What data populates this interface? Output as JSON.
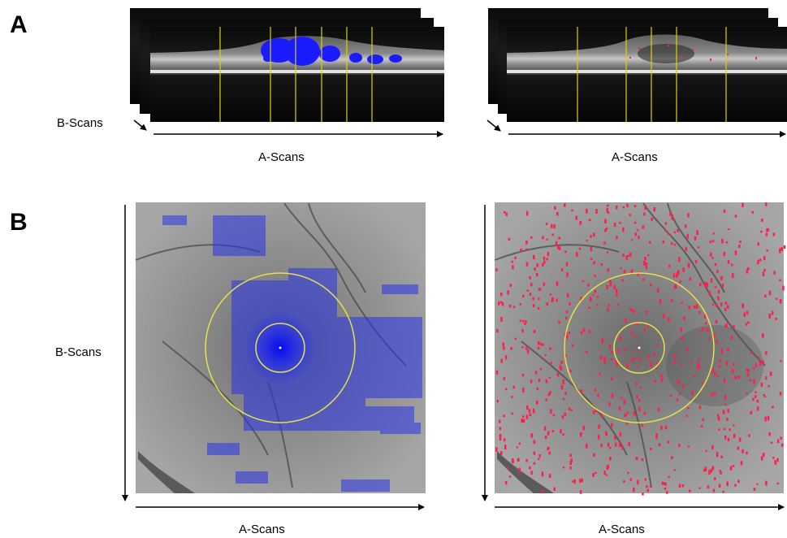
{
  "figure": {
    "panels": [
      {
        "letter": "A",
        "views": [
          {
            "side": "left",
            "b_axis_label": "B-Scans",
            "a_axis_label": "A-Scans",
            "overlay_color": "#1b1bff",
            "marker_color": "#d8d400"
          },
          {
            "side": "right",
            "a_axis_label": "A-Scans",
            "overlay_color": "#ff1f4b",
            "marker_color": "#d8d400"
          }
        ]
      },
      {
        "letter": "B",
        "views": [
          {
            "side": "left",
            "b_axis_label": "B-Scans",
            "a_axis_label": "A-Scans",
            "overlay_color": "#2a35e6",
            "ring_color": "#e6e04a"
          },
          {
            "side": "right",
            "a_axis_label": "A-Scans",
            "overlay_color": "#ff1f4b",
            "ring_color": "#e6e04a"
          }
        ]
      }
    ]
  }
}
